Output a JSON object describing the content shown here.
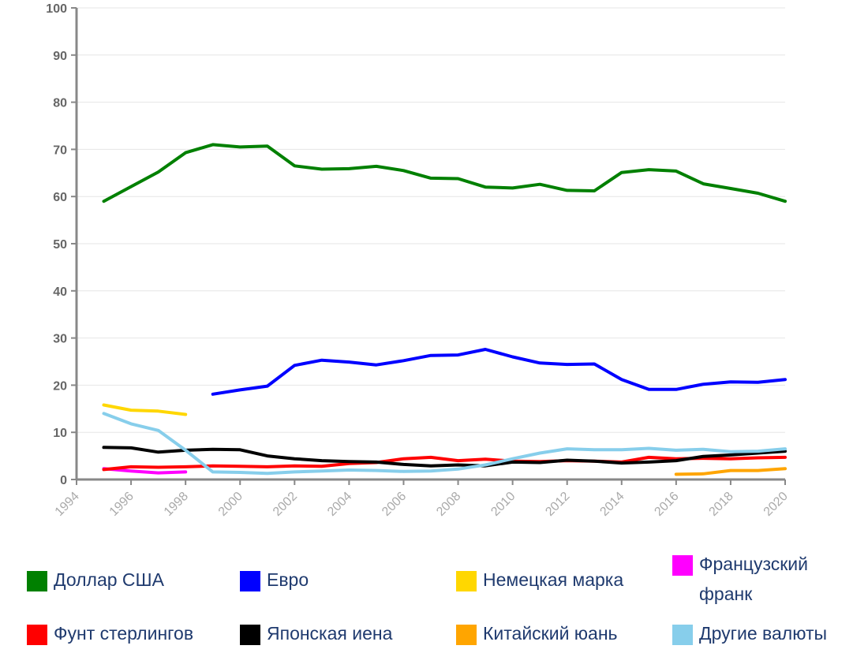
{
  "chart_data": {
    "type": "line",
    "title": "",
    "xlabel": "",
    "ylabel": "",
    "xlim": [
      1994,
      2020
    ],
    "ylim": [
      0,
      100
    ],
    "y_ticks": [
      "0",
      "10",
      "20",
      "30",
      "40",
      "50",
      "60",
      "70",
      "80",
      "90",
      "100"
    ],
    "x_ticks": [
      "1994",
      "1996",
      "1998",
      "2000",
      "2002",
      "2004",
      "2006",
      "2008",
      "2010",
      "2012",
      "2014",
      "2016",
      "2018",
      "2020"
    ],
    "grid": true,
    "legend_position": "bottom",
    "series": [
      {
        "name": "Доллар США",
        "color": "#008000",
        "x": [
          1995,
          1996,
          1997,
          1998,
          1999,
          2000,
          2001,
          2002,
          2003,
          2004,
          2005,
          2006,
          2007,
          2008,
          2009,
          2010,
          2011,
          2012,
          2013,
          2014,
          2015,
          2016,
          2017,
          2018,
          2019,
          2020
        ],
        "y": [
          59.0,
          62.1,
          65.2,
          69.3,
          71.0,
          70.5,
          70.7,
          66.5,
          65.8,
          65.9,
          66.4,
          65.5,
          63.9,
          63.8,
          62.0,
          61.8,
          62.6,
          61.3,
          61.2,
          65.1,
          65.7,
          65.4,
          62.7,
          61.7,
          60.7,
          59.0
        ]
      },
      {
        "name": "Евро",
        "color": "#0000ff",
        "x": [
          1999,
          2000,
          2001,
          2002,
          2003,
          2004,
          2005,
          2006,
          2007,
          2008,
          2009,
          2010,
          2011,
          2012,
          2013,
          2014,
          2015,
          2016,
          2017,
          2018,
          2019,
          2020
        ],
        "y": [
          18.1,
          19.0,
          19.8,
          24.2,
          25.3,
          24.9,
          24.3,
          25.2,
          26.3,
          26.4,
          27.6,
          26.0,
          24.7,
          24.4,
          24.5,
          21.2,
          19.1,
          19.1,
          20.2,
          20.7,
          20.6,
          21.2
        ]
      },
      {
        "name": "Немецкая марка",
        "color": "#ffd700",
        "x": [
          1995,
          1996,
          1997,
          1998
        ],
        "y": [
          15.8,
          14.7,
          14.5,
          13.8
        ]
      },
      {
        "name": "Французский франк",
        "color": "#ff00ff",
        "x": [
          1995,
          1996,
          1997,
          1998
        ],
        "y": [
          2.3,
          1.8,
          1.4,
          1.6
        ]
      },
      {
        "name": "Фунт стерлингов",
        "color": "#ff0000",
        "x": [
          1995,
          1996,
          1997,
          1998,
          1999,
          2000,
          2001,
          2002,
          2003,
          2004,
          2005,
          2006,
          2007,
          2008,
          2009,
          2010,
          2011,
          2012,
          2013,
          2014,
          2015,
          2016,
          2017,
          2018,
          2019,
          2020
        ],
        "y": [
          2.1,
          2.7,
          2.6,
          2.7,
          2.9,
          2.8,
          2.7,
          2.9,
          2.8,
          3.4,
          3.6,
          4.4,
          4.7,
          4.0,
          4.3,
          3.9,
          3.8,
          4.0,
          3.9,
          3.7,
          4.7,
          4.4,
          4.5,
          4.4,
          4.6,
          4.7
        ]
      },
      {
        "name": "Японская иена",
        "color": "#000000",
        "x": [
          1995,
          1996,
          1997,
          1998,
          1999,
          2000,
          2001,
          2002,
          2003,
          2004,
          2005,
          2006,
          2007,
          2008,
          2009,
          2010,
          2011,
          2012,
          2013,
          2014,
          2015,
          2016,
          2017,
          2018,
          2019,
          2020
        ],
        "y": [
          6.8,
          6.7,
          5.8,
          6.2,
          6.4,
          6.3,
          5.0,
          4.4,
          4.0,
          3.8,
          3.7,
          3.2,
          2.9,
          3.1,
          2.9,
          3.7,
          3.6,
          4.1,
          3.9,
          3.5,
          3.7,
          4.0,
          4.9,
          5.2,
          5.6,
          6.0
        ]
      },
      {
        "name": "Китайский юань",
        "color": "#ffa500",
        "x": [
          2016,
          2017,
          2018,
          2019,
          2020
        ],
        "y": [
          1.1,
          1.2,
          1.9,
          1.9,
          2.3
        ]
      },
      {
        "name": "Другие валюты",
        "color": "#87ceeb",
        "x": [
          1995,
          1996,
          1997,
          1998,
          1999,
          2000,
          2001,
          2002,
          2003,
          2004,
          2005,
          2006,
          2007,
          2008,
          2009,
          2010,
          2011,
          2012,
          2013,
          2014,
          2015,
          2016,
          2017,
          2018,
          2019,
          2020
        ],
        "y": [
          14.0,
          11.8,
          10.4,
          6.2,
          1.6,
          1.5,
          1.3,
          1.6,
          1.8,
          2.0,
          1.9,
          1.7,
          1.8,
          2.2,
          3.1,
          4.4,
          5.6,
          6.5,
          6.3,
          6.3,
          6.6,
          6.2,
          6.4,
          5.9,
          6.0,
          6.5
        ]
      }
    ]
  }
}
